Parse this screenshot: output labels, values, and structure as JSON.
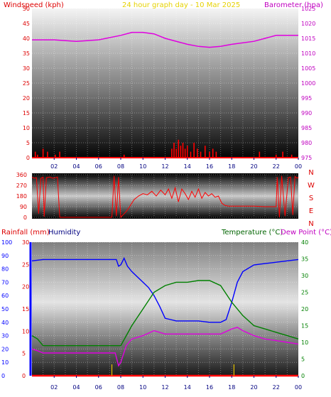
{
  "chart_data": [
    {
      "type": "line",
      "title": "24 hour graph day - 10 Mar 2025",
      "left_axis_label": "Windspeed (kph)",
      "right_axis_label": "Barometer (hpa)",
      "x_ticks": [
        "02",
        "04",
        "06",
        "08",
        "10",
        "12",
        "14",
        "16",
        "18",
        "20",
        "22",
        "00"
      ],
      "ylim_left": [
        0,
        50
      ],
      "yticks_left": [
        0,
        5,
        10,
        15,
        20,
        25,
        30,
        35,
        40,
        45,
        50
      ],
      "ylim_right": [
        975,
        1025
      ],
      "yticks_right": [
        975,
        980,
        985,
        990,
        995,
        1000,
        1005,
        1010,
        1015,
        1020,
        1025
      ],
      "series": [
        {
          "axis": "right",
          "color": "#e000e0",
          "x": [
            0,
            2,
            4,
            6,
            8,
            9,
            10,
            11,
            12,
            14,
            15,
            16,
            17,
            18,
            20,
            21,
            22,
            24
          ],
          "y": [
            1014.5,
            1014.5,
            1014,
            1014.5,
            1016,
            1017,
            1017,
            1016.5,
            1015,
            1013,
            1012.3,
            1012,
            1012.3,
            1013,
            1014,
            1015,
            1016,
            1016
          ]
        },
        {
          "axis": "left",
          "color": "#ff0000",
          "type": "bar",
          "x": [
            0.3,
            0.5,
            1.0,
            1.4,
            2.1,
            2.5,
            8.3,
            12.6,
            12.8,
            13.0,
            13.2,
            13.4,
            13.6,
            13.8,
            14.0,
            14.3,
            14.6,
            14.9,
            15.2,
            15.6,
            16.0,
            16.3,
            16.6,
            20.5,
            22.0,
            22.6,
            23.4
          ],
          "y": [
            2,
            1,
            3,
            2,
            1,
            2,
            1,
            3,
            5,
            3,
            6,
            4,
            5,
            3,
            4,
            2,
            5,
            3,
            2,
            4,
            2,
            3,
            2,
            2,
            1,
            2,
            1
          ]
        }
      ]
    },
    {
      "type": "line",
      "left_axis_label": "",
      "right_axis_label": "",
      "compass_labels": [
        "N",
        "W",
        "S",
        "E",
        "N"
      ],
      "x_ticks": [],
      "ylim_left": [
        0,
        360
      ],
      "yticks_left": [
        0,
        90,
        180,
        270,
        360
      ],
      "series": [
        {
          "axis": "left",
          "color": "#ff0000",
          "x": [
            0,
            0.2,
            0.4,
            0.6,
            0.8,
            1.0,
            1.1,
            1.3,
            1.6,
            1.9,
            2.1,
            2.3,
            2.5,
            7.2,
            7.4,
            7.6,
            7.8,
            8.0,
            8.2,
            8.5,
            8.8,
            9.2,
            9.6,
            10.0,
            10.4,
            10.8,
            11.2,
            11.6,
            12.0,
            12.3,
            12.6,
            12.9,
            13.2,
            13.5,
            13.8,
            14.1,
            14.4,
            14.7,
            15.0,
            15.3,
            15.6,
            15.9,
            16.2,
            16.5,
            16.8,
            17.1,
            17.4,
            17.7,
            18.0,
            19.0,
            20.0,
            21.0,
            22.0,
            22.1,
            22.3,
            22.5,
            22.8,
            23.1,
            23.3,
            23.5,
            23.7,
            23.9,
            24.0
          ],
          "y": [
            340,
            330,
            335,
            30,
            330,
            340,
            5,
            335,
            340,
            330,
            335,
            340,
            0,
            0,
            350,
            10,
            340,
            0,
            20,
            50,
            90,
            150,
            180,
            200,
            190,
            220,
            180,
            230,
            190,
            240,
            160,
            250,
            130,
            240,
            200,
            150,
            220,
            170,
            240,
            160,
            210,
            180,
            200,
            170,
            180,
            120,
            100,
            95,
            95,
            95,
            95,
            90,
            90,
            340,
            0,
            350,
            10,
            335,
            340,
            20,
            345,
            330,
            340
          ]
        }
      ]
    },
    {
      "type": "line",
      "left_axis_label": "Rainfall (mm)",
      "left_axis_label_2": "Humidity",
      "right_axis_label": "Temperature (°C)",
      "right_axis_label_2": "Dew Point (°C)",
      "x_ticks": [
        "02",
        "04",
        "06",
        "08",
        "10",
        "12",
        "14",
        "16",
        "18",
        "20",
        "22",
        "00"
      ],
      "ylim_humidity": [
        0,
        100
      ],
      "yticks_humidity": [
        0,
        10,
        20,
        30,
        40,
        50,
        60,
        70,
        80,
        90,
        100
      ],
      "ylim_rain": [
        0,
        30
      ],
      "yticks_rain": [
        0,
        5,
        10,
        15,
        20,
        25,
        30
      ],
      "ylim_right": [
        0,
        40
      ],
      "yticks_right": [
        0,
        5,
        10,
        15,
        20,
        25,
        30,
        35,
        40
      ],
      "series": [
        {
          "axis": "humidity",
          "color": "#0000ff",
          "x": [
            0,
            1,
            2,
            4,
            6,
            7.6,
            7.8,
            8.0,
            8.3,
            8.6,
            9.0,
            9.5,
            10.0,
            10.5,
            11.0,
            11.5,
            12.0,
            12.5,
            13.0,
            14.0,
            15.0,
            16.0,
            17.0,
            17.5,
            18.0,
            18.5,
            19.0,
            20.0,
            21.0,
            22.0,
            23.0,
            24.0
          ],
          "y": [
            86,
            87,
            87,
            87,
            87,
            87,
            82,
            83,
            88,
            82,
            78,
            74,
            70,
            66,
            60,
            52,
            43,
            42,
            41,
            41,
            41,
            40,
            40,
            42,
            55,
            70,
            78,
            83,
            84,
            85,
            86,
            87
          ]
        },
        {
          "axis": "right",
          "color": "#008000",
          "x": [
            0,
            0.5,
            1.0,
            2,
            4,
            6,
            7.8,
            8.0,
            8.5,
            9.0,
            10.0,
            11.0,
            12.0,
            13.0,
            14.0,
            15.0,
            16.0,
            17.0,
            18.0,
            19.0,
            20.0,
            21.0,
            22.0,
            23.0,
            24.0
          ],
          "y": [
            12,
            11,
            9,
            9,
            9,
            9,
            9,
            9,
            12,
            15,
            20,
            25,
            27,
            28,
            28,
            28.5,
            28.5,
            27,
            22,
            18,
            15,
            14,
            13,
            12,
            11
          ],
          "label": "Temperature (°C)"
        },
        {
          "axis": "right",
          "color": "#e000e0",
          "x": [
            0,
            0.5,
            1.0,
            2,
            4,
            6,
            7.5,
            7.8,
            8.0,
            8.5,
            9.0,
            10.0,
            11.0,
            12.0,
            13.0,
            14.0,
            15.0,
            16.0,
            17.0,
            18.0,
            18.5,
            19.0,
            20.0,
            21.0,
            22.0,
            23.0,
            24.0
          ],
          "y": [
            8,
            7.5,
            6.8,
            6.8,
            6.8,
            6.8,
            6.8,
            3,
            4,
            9,
            11,
            12,
            13.5,
            12.5,
            12.5,
            12.5,
            12.5,
            12.5,
            12.5,
            14,
            14.5,
            13.5,
            12,
            11,
            10.5,
            10,
            9.5
          ],
          "label": "Dew Point (°C)"
        },
        {
          "axis": "rain",
          "color": "#ff0000",
          "x": [
            0,
            24
          ],
          "y": [
            0,
            0
          ]
        }
      ]
    }
  ]
}
